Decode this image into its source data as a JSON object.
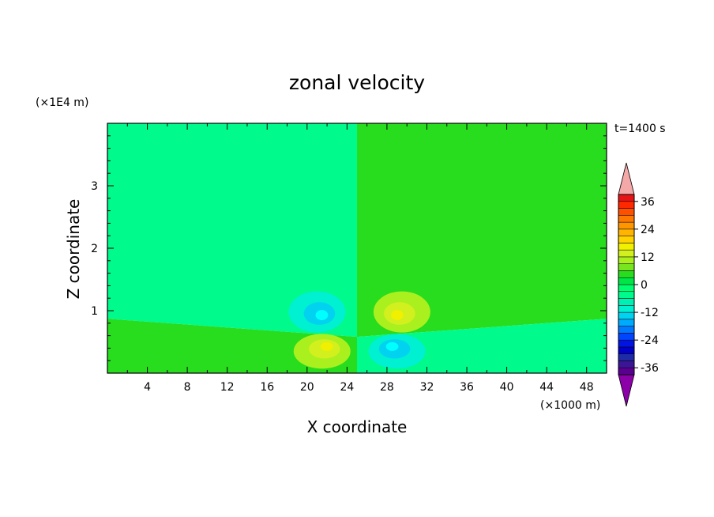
{
  "chart_data": {
    "type": "heatmap",
    "title": "zonal velocity",
    "xlabel": "X coordinate",
    "ylabel": "Z coordinate",
    "x_unit": "(×1000 m)",
    "y_unit": "(×1E4 m)",
    "time_label": "t=1400 s",
    "xlim": [
      0,
      50
    ],
    "ylim": [
      0,
      4
    ],
    "x_ticks": [
      4,
      8,
      12,
      16,
      20,
      24,
      28,
      32,
      36,
      40,
      44,
      48
    ],
    "y_ticks": [
      1,
      2,
      3
    ],
    "colorbar": {
      "levels": [
        -42,
        -39,
        -36,
        -33,
        -30,
        -27,
        -24,
        -21,
        -18,
        -15,
        -12,
        -9,
        -6,
        -3,
        0,
        3,
        6,
        9,
        12,
        15,
        18,
        21,
        24,
        27,
        30,
        33,
        36,
        39,
        42
      ],
      "tick_labels": [
        "36",
        "24",
        "12",
        "0",
        "-12",
        "-24",
        "-36"
      ],
      "tick_values": [
        36,
        24,
        12,
        0,
        -12,
        -24,
        -36
      ],
      "under_color": "#8c00aa",
      "over_color": "#f4a8a8",
      "colors": [
        "#5a0090",
        "#3c1596",
        "#1e2aa6",
        "#0000c8",
        "#0014e6",
        "#0046ff",
        "#0078ff",
        "#00aaff",
        "#00d2f0",
        "#00f0d2",
        "#00f0b4",
        "#00fa8c",
        "#00ff6e",
        "#00e646",
        "#28dc1e",
        "#78e61e",
        "#aaf01e",
        "#d2f01e",
        "#f0f000",
        "#ffd200",
        "#ffb400",
        "#ff9600",
        "#ff7800",
        "#ff5000",
        "#ff2800",
        "#e61414"
      ]
    },
    "regions": [
      {
        "name": "upper-left",
        "value": 1,
        "level_color": "#00fa8c"
      },
      {
        "name": "upper-right",
        "value": -1,
        "level_color": "#28dc1e"
      },
      {
        "name": "lower-left",
        "value": -1,
        "level_color": "#28dc1e"
      },
      {
        "name": "lower-right",
        "value": 1,
        "level_color": "#00fa8c"
      }
    ],
    "cells": [
      {
        "name": "cell-upper-left",
        "x": 21,
        "z": 0.98,
        "peak": -8,
        "colors": [
          "#00f0d2",
          "#00d2f0",
          "#00ffff"
        ]
      },
      {
        "name": "cell-upper-right",
        "x": 29.5,
        "z": 0.98,
        "peak": 8,
        "colors": [
          "#aaf01e",
          "#d2f01e",
          "#f0f000"
        ]
      },
      {
        "name": "cell-lower-left",
        "x": 21.5,
        "z": 0.35,
        "peak": 8,
        "colors": [
          "#aaf01e",
          "#d2f01e",
          "#f0f000"
        ]
      },
      {
        "name": "cell-lower-right",
        "x": 29,
        "z": 0.35,
        "peak": -8,
        "colors": [
          "#00f0d2",
          "#00d2f0",
          "#00ffff"
        ]
      }
    ]
  }
}
